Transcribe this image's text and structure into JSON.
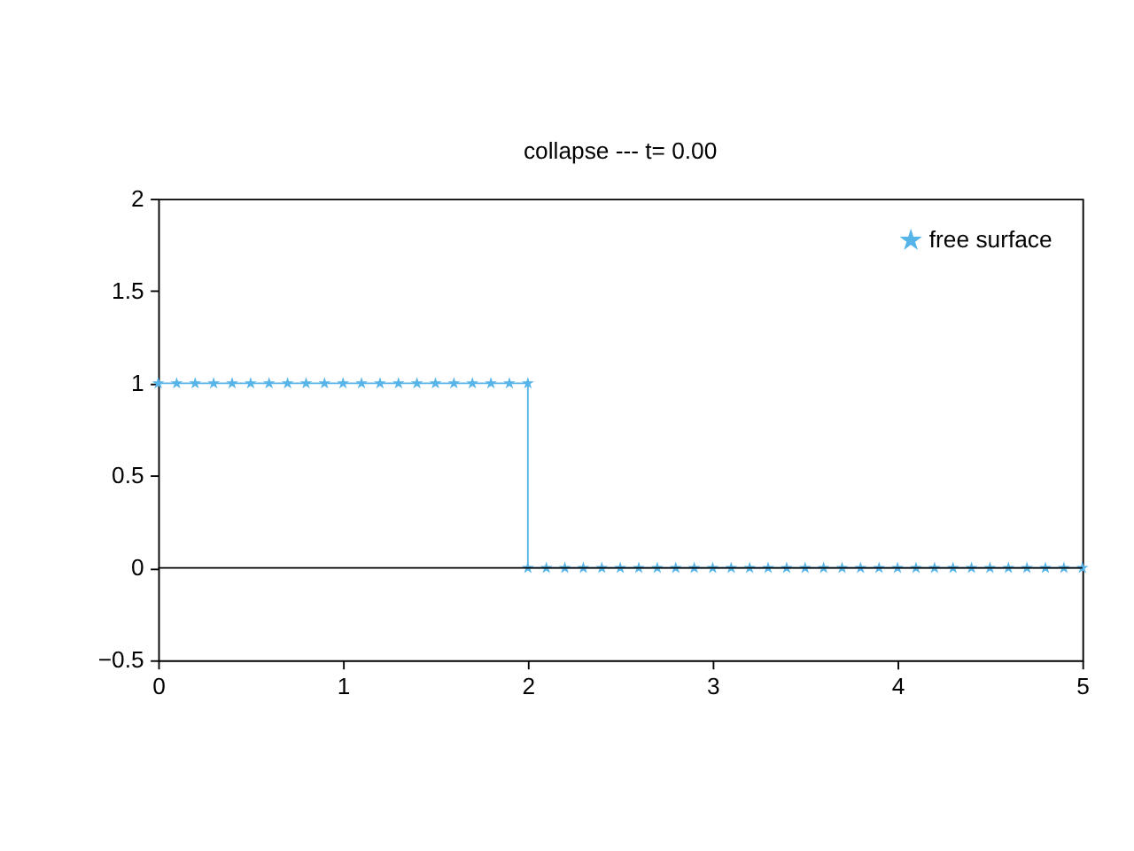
{
  "chart_data": {
    "type": "line",
    "title": "collapse --- t= 0.00",
    "x": [
      0,
      0.1,
      0.2,
      0.3,
      0.4,
      0.5,
      0.6,
      0.7,
      0.8,
      0.9,
      1,
      1.1,
      1.2,
      1.3,
      1.4,
      1.5,
      1.6,
      1.7,
      1.8,
      1.9,
      2,
      2,
      2.1,
      2.2,
      2.3,
      2.4,
      2.5,
      2.6,
      2.7,
      2.8,
      2.9,
      3,
      3.1,
      3.2,
      3.3,
      3.4,
      3.5,
      3.6,
      3.7,
      3.8,
      3.9,
      4,
      4.1,
      4.2,
      4.3,
      4.4,
      4.5,
      4.6,
      4.7,
      4.8,
      4.9,
      5
    ],
    "series": [
      {
        "name": "free surface",
        "color": "#56b4e9",
        "values": [
          1,
          1,
          1,
          1,
          1,
          1,
          1,
          1,
          1,
          1,
          1,
          1,
          1,
          1,
          1,
          1,
          1,
          1,
          1,
          1,
          1,
          0,
          0,
          0,
          0,
          0,
          0,
          0,
          0,
          0,
          0,
          0,
          0,
          0,
          0,
          0,
          0,
          0,
          0,
          0,
          0,
          0,
          0,
          0,
          0,
          0,
          0,
          0,
          0,
          0,
          0,
          0
        ]
      }
    ],
    "xlim": [
      0,
      5
    ],
    "xticks": [
      0,
      1,
      2,
      3,
      4,
      5
    ],
    "ylim": [
      -0.5,
      2
    ],
    "yticks": [
      -0.5,
      0,
      0.5,
      1,
      1.5,
      2
    ],
    "ref_lines": [
      {
        "axis": "y",
        "value": 0,
        "color": "#000000"
      }
    ],
    "marker": "star",
    "line_style": "solid",
    "grid": false,
    "legend": "top right"
  }
}
